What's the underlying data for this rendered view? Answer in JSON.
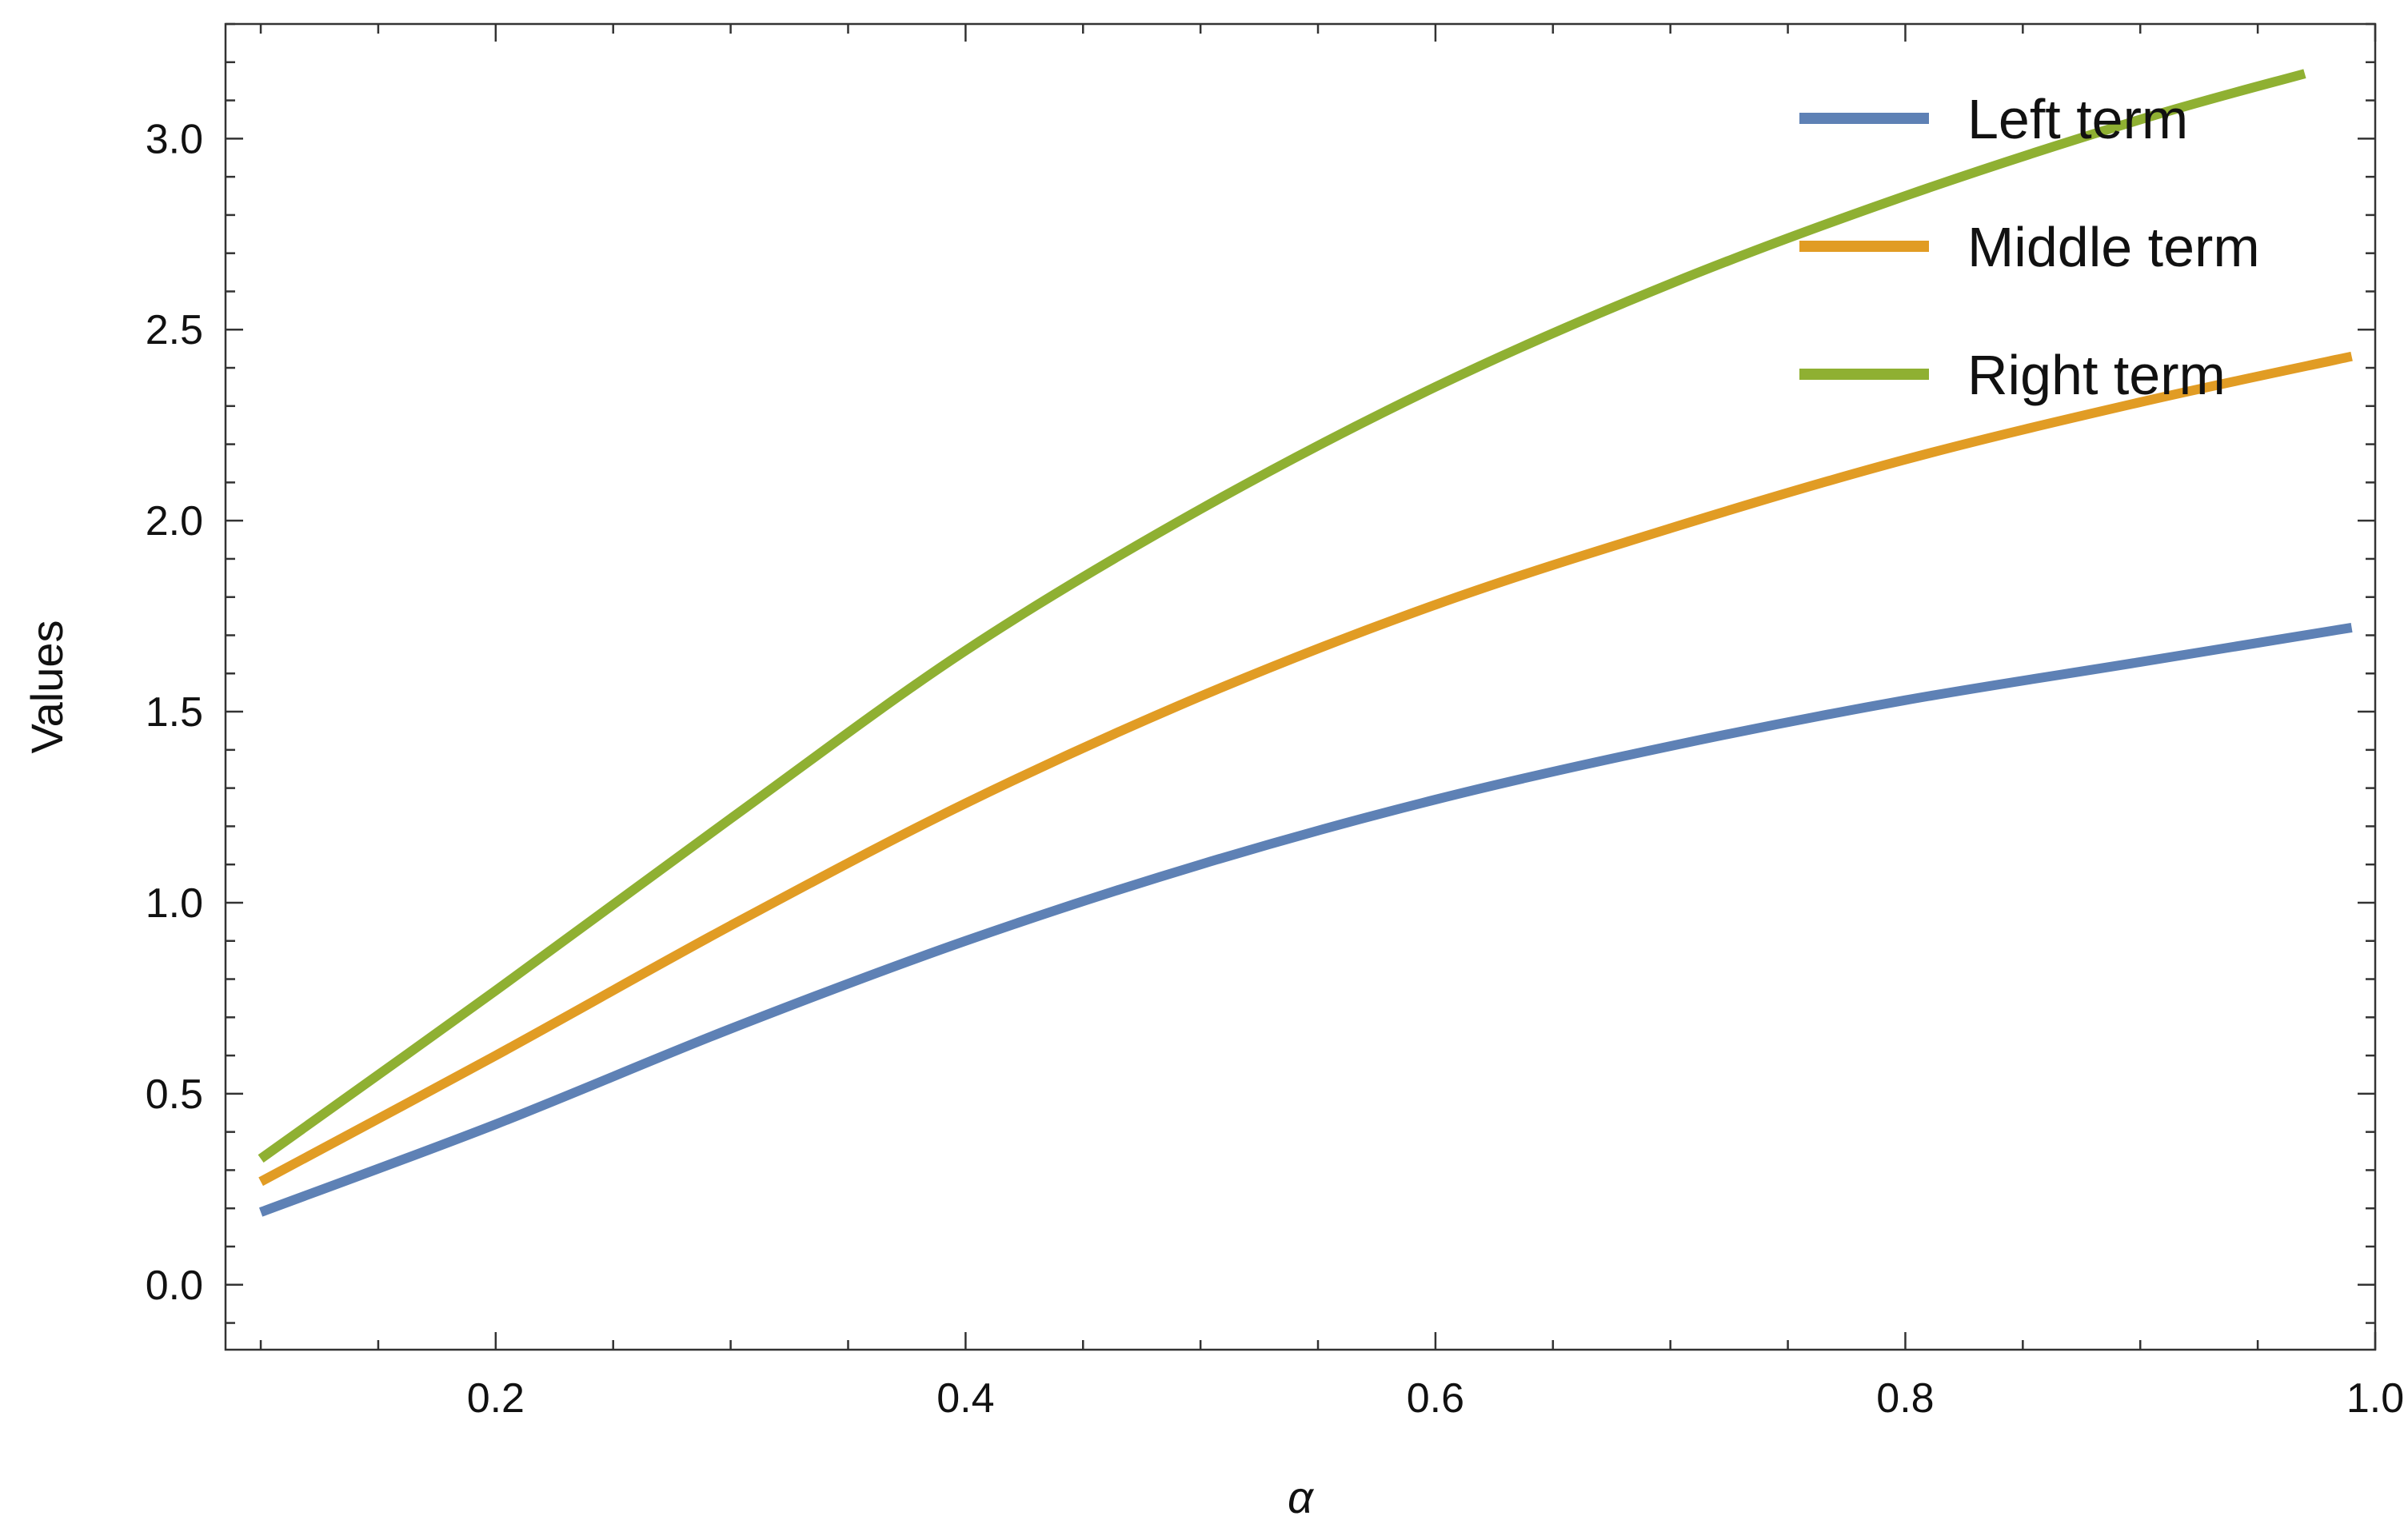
{
  "chart_data": {
    "type": "line",
    "title": "",
    "xlabel": "α",
    "ylabel": "Values",
    "xlim": [
      0.085,
      1.0
    ],
    "ylim": [
      -0.17,
      3.3
    ],
    "x_ticks": [
      0.2,
      0.4,
      0.6,
      0.8,
      1.0
    ],
    "x_tick_labels": [
      "0.2",
      "0.4",
      "0.6",
      "0.8",
      "1.0"
    ],
    "y_ticks": [
      0.0,
      0.5,
      1.0,
      1.5,
      2.0,
      2.5,
      3.0
    ],
    "y_tick_labels": [
      "0.0",
      "0.5",
      "1.0",
      "1.5",
      "2.0",
      "2.5",
      "3.0"
    ],
    "grid": false,
    "frame": true,
    "legend_position": "top-right",
    "x": [
      0.1,
      0.2,
      0.3,
      0.4,
      0.5,
      0.6,
      0.7,
      0.8,
      0.9,
      0.99
    ],
    "series": [
      {
        "name": "Left term",
        "color": "#5E81B5",
        "x": [
          0.1,
          0.2,
          0.3,
          0.4,
          0.5,
          0.6,
          0.7,
          0.8,
          0.9,
          0.99
        ],
        "values": [
          0.19,
          0.42,
          0.67,
          0.9,
          1.1,
          1.27,
          1.41,
          1.53,
          1.63,
          1.72
        ]
      },
      {
        "name": "Middle term",
        "color": "#E19C24",
        "x": [
          0.1,
          0.2,
          0.3,
          0.4,
          0.5,
          0.6,
          0.7,
          0.8,
          0.9,
          0.99
        ],
        "values": [
          0.27,
          0.6,
          0.94,
          1.26,
          1.54,
          1.78,
          1.98,
          2.16,
          2.31,
          2.43
        ]
      },
      {
        "name": "Right term",
        "color": "#8FB032",
        "x": [
          0.1,
          0.2,
          0.3,
          0.4,
          0.5,
          0.6,
          0.7,
          0.8,
          0.9,
          0.97
        ],
        "values": [
          0.33,
          0.77,
          1.22,
          1.66,
          2.03,
          2.35,
          2.62,
          2.85,
          3.05,
          3.17
        ]
      }
    ]
  }
}
